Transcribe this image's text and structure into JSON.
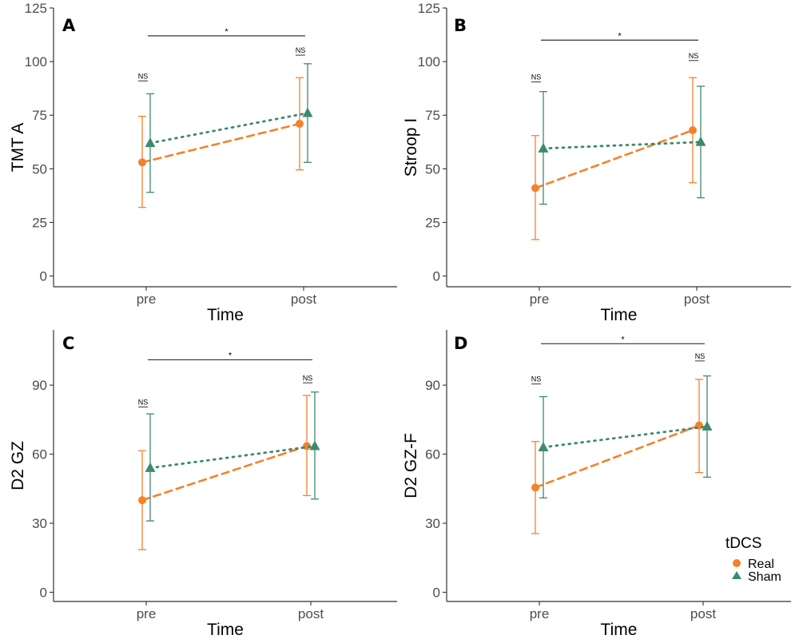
{
  "colors": {
    "Real": "#f5812b",
    "Sham": "#3f8a6e",
    "axis": "#333333",
    "bracket": "#333333"
  },
  "legend": {
    "title": "tDCS",
    "entries": [
      {
        "name": "Real",
        "shape": "circle",
        "linestyle": "dashed"
      },
      {
        "name": "Sham",
        "shape": "triangle",
        "linestyle": "dotted"
      }
    ]
  },
  "chart_data": [
    {
      "type": "line",
      "panel": "A",
      "xlabel": "Time",
      "ylabel": "TMT A",
      "categories": [
        "pre",
        "post"
      ],
      "ylim": [
        -5,
        125
      ],
      "yticks": [
        0,
        25,
        50,
        75,
        100,
        125
      ],
      "grid": false,
      "series": [
        {
          "name": "Real",
          "values": [
            53,
            71
          ],
          "lower": [
            32,
            49.5
          ],
          "upper": [
            74.5,
            92.5
          ]
        },
        {
          "name": "Sham",
          "values": [
            62,
            76
          ],
          "lower": [
            39,
            53
          ],
          "upper": [
            85,
            99
          ]
        }
      ],
      "annotations": {
        "pre": "NS",
        "post": "NS",
        "time_effect": "*"
      },
      "annot_y": {
        "pre": 91,
        "post": 103,
        "bracket": 112
      }
    },
    {
      "type": "line",
      "panel": "B",
      "xlabel": "Time",
      "ylabel": "Stroop I",
      "categories": [
        "pre",
        "post"
      ],
      "ylim": [
        -5,
        125
      ],
      "yticks": [
        0,
        25,
        50,
        75,
        100,
        125
      ],
      "grid": false,
      "series": [
        {
          "name": "Real",
          "values": [
            41,
            68
          ],
          "lower": [
            17,
            43.5
          ],
          "upper": [
            65.5,
            92.5
          ]
        },
        {
          "name": "Sham",
          "values": [
            59.5,
            62.5
          ],
          "lower": [
            33.5,
            36.5
          ],
          "upper": [
            86,
            88.5
          ]
        }
      ],
      "annotations": {
        "pre": "NS",
        "post": "NS",
        "time_effect": "*"
      },
      "annot_y": {
        "pre": 90.5,
        "post": 100.5,
        "bracket": 110
      }
    },
    {
      "type": "line",
      "panel": "C",
      "xlabel": "Time",
      "ylabel": "D2 GZ",
      "categories": [
        "pre",
        "post"
      ],
      "ylim": [
        -4,
        114
      ],
      "yticks": [
        0,
        30,
        60,
        90
      ],
      "grid": false,
      "series": [
        {
          "name": "Real",
          "values": [
            40,
            63.5
          ],
          "lower": [
            18.5,
            42
          ],
          "upper": [
            61.5,
            85.5
          ]
        },
        {
          "name": "Sham",
          "values": [
            54,
            63.5
          ],
          "lower": [
            31,
            40.5
          ],
          "upper": [
            77.5,
            87
          ]
        }
      ],
      "annotations": {
        "pre": "NS",
        "post": "NS",
        "time_effect": "*"
      },
      "annot_y": {
        "pre": 80.5,
        "post": 91,
        "bracket": 101
      }
    },
    {
      "type": "line",
      "panel": "D",
      "xlabel": "Time",
      "ylabel": "D2 GZ-F",
      "categories": [
        "pre",
        "post"
      ],
      "ylim": [
        -4,
        114
      ],
      "yticks": [
        0,
        30,
        60,
        90
      ],
      "grid": false,
      "series": [
        {
          "name": "Real",
          "values": [
            45.5,
            72.5
          ],
          "lower": [
            25.5,
            52
          ],
          "upper": [
            65.5,
            92.5
          ]
        },
        {
          "name": "Sham",
          "values": [
            63,
            72
          ],
          "lower": [
            41,
            50
          ],
          "upper": [
            85,
            94
          ]
        }
      ],
      "annotations": {
        "pre": "NS",
        "post": "NS",
        "time_effect": "*"
      },
      "annot_y": {
        "pre": 90.5,
        "post": 100.5,
        "bracket": 108
      }
    }
  ]
}
